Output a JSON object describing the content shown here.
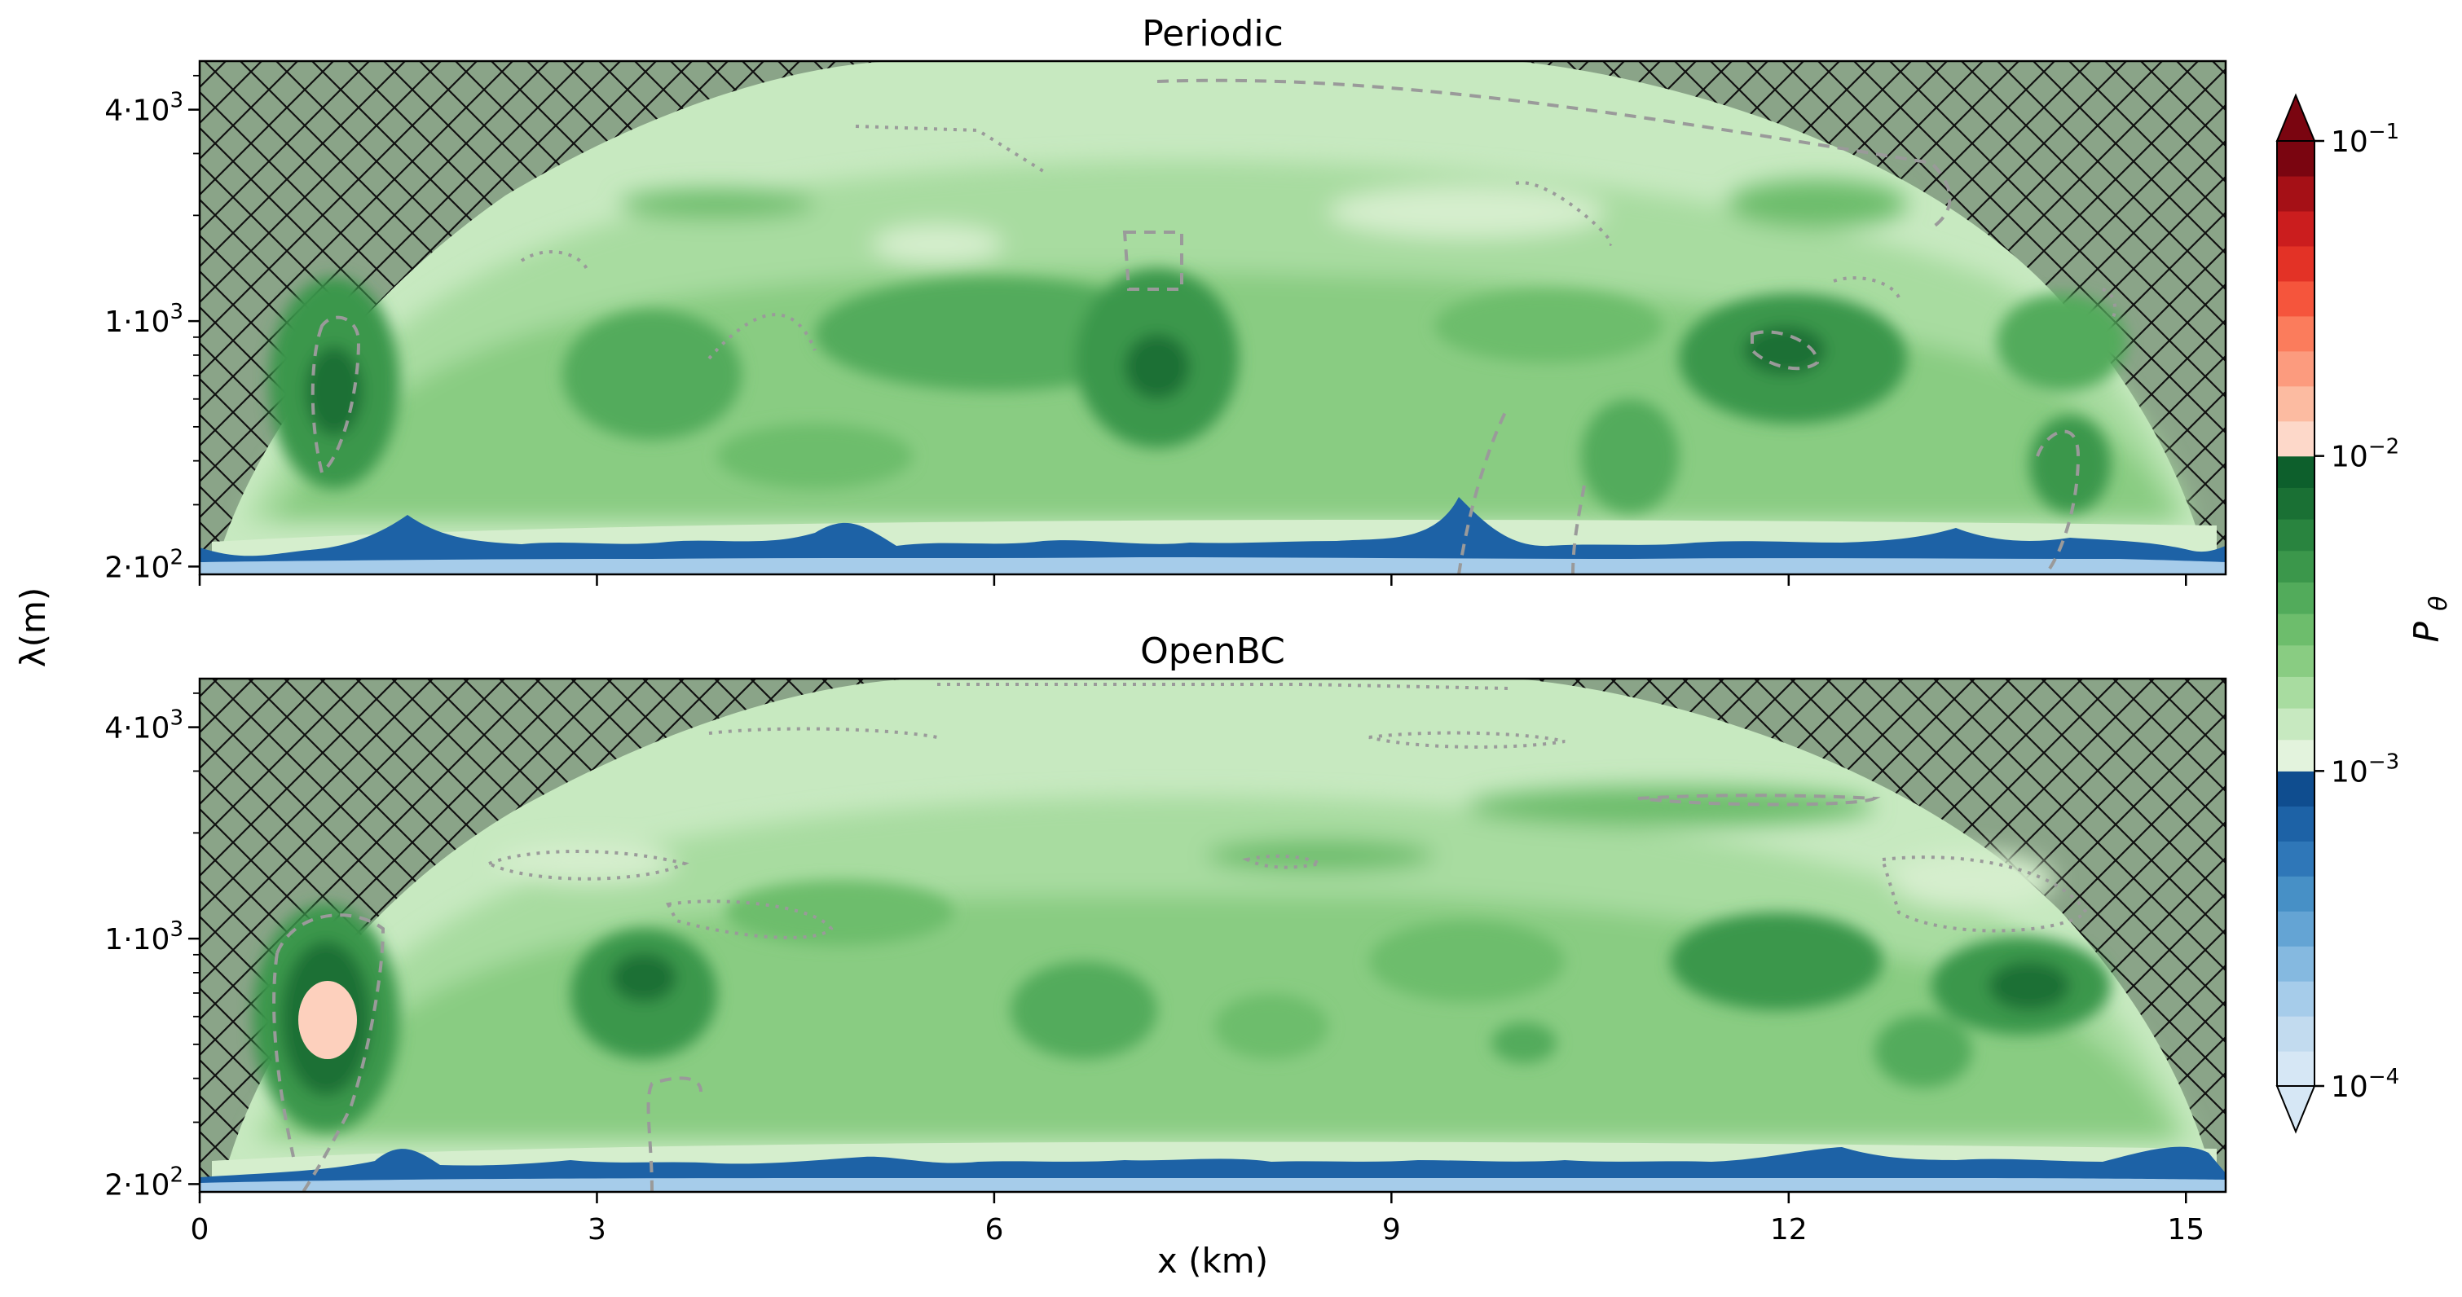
{
  "chart_data": [
    {
      "type": "heatmap",
      "title": "Periodic",
      "xlabel": "",
      "ylabel": "λ(m)",
      "x_range_km": [
        0,
        15.3
      ],
      "y_scale": "log",
      "y_range_m": [
        190,
        5500
      ],
      "x_ticks": [
        0,
        3,
        6,
        9,
        12,
        15
      ],
      "y_ticks": [
        {
          "value": 200,
          "label": "2·10²"
        },
        {
          "value": 1000,
          "label": "1·10³"
        },
        {
          "value": 4000,
          "label": "4·10³"
        }
      ],
      "hatched_region": "outside cone of influence",
      "contour_lines": [
        "dashed",
        "dotted"
      ],
      "hotspots": [
        {
          "x_km": 1.0,
          "lambda_m": 700,
          "level": "green-dark"
        },
        {
          "x_km": 7.2,
          "lambda_m": 800,
          "level": "green-dark"
        },
        {
          "x_km": 12.0,
          "lambda_m": 900,
          "level": "green-dark"
        },
        {
          "x_km": 3.4,
          "lambda_m": 750,
          "level": "green-mid"
        },
        {
          "x_km": 14.2,
          "lambda_m": 700,
          "level": "green-mid"
        }
      ]
    },
    {
      "type": "heatmap",
      "title": "OpenBC",
      "xlabel": "x (km)",
      "ylabel": "λ(m)",
      "x_range_km": [
        0,
        15.3
      ],
      "y_scale": "log",
      "y_range_m": [
        190,
        5500
      ],
      "x_ticks": [
        0,
        3,
        6,
        9,
        12,
        15
      ],
      "y_ticks": [
        {
          "value": 200,
          "label": "2·10²"
        },
        {
          "value": 1000,
          "label": "1·10³"
        },
        {
          "value": 4000,
          "label": "4·10³"
        }
      ],
      "hatched_region": "outside cone of influence",
      "contour_lines": [
        "dashed",
        "dotted"
      ],
      "hotspots": [
        {
          "x_km": 0.95,
          "lambda_m": 650,
          "level": "red-light"
        },
        {
          "x_km": 3.3,
          "lambda_m": 750,
          "level": "green-dark"
        },
        {
          "x_km": 6.6,
          "lambda_m": 600,
          "level": "green-mid"
        },
        {
          "x_km": 12.0,
          "lambda_m": 900,
          "level": "green-mid"
        },
        {
          "x_km": 14.2,
          "lambda_m": 700,
          "level": "green-mid"
        }
      ]
    }
  ],
  "colorbar": {
    "label": "Pθ",
    "scale": "log",
    "range": [
      0.0001,
      0.1
    ],
    "ticks": [
      {
        "value": 0.1,
        "base": "10",
        "exp": "−1"
      },
      {
        "value": 0.01,
        "base": "10",
        "exp": "−2"
      },
      {
        "value": 0.001,
        "base": "10",
        "exp": "−3"
      },
      {
        "value": 0.0001,
        "base": "10",
        "exp": "−4"
      }
    ],
    "colors": {
      "blue_band": [
        "#d6e7f5",
        "#c2dbef",
        "#a6ccea",
        "#85b9e0",
        "#64a4d4",
        "#4790c6",
        "#2f77b8",
        "#1d62a6",
        "#0f4d8f"
      ],
      "green_band": [
        "#e3f3dd",
        "#c7e9c0",
        "#a8dca0",
        "#89cc82",
        "#6dbd6c",
        "#52ab5b",
        "#3b974b",
        "#29843f",
        "#1a7034",
        "#0d5f2c"
      ],
      "red_band": [
        "#fdd8c9",
        "#fcbba1",
        "#fc9b7e",
        "#fb7c5c",
        "#f5553c",
        "#e33226",
        "#cb1d1e",
        "#a51016",
        "#7a0510"
      ]
    }
  }
}
